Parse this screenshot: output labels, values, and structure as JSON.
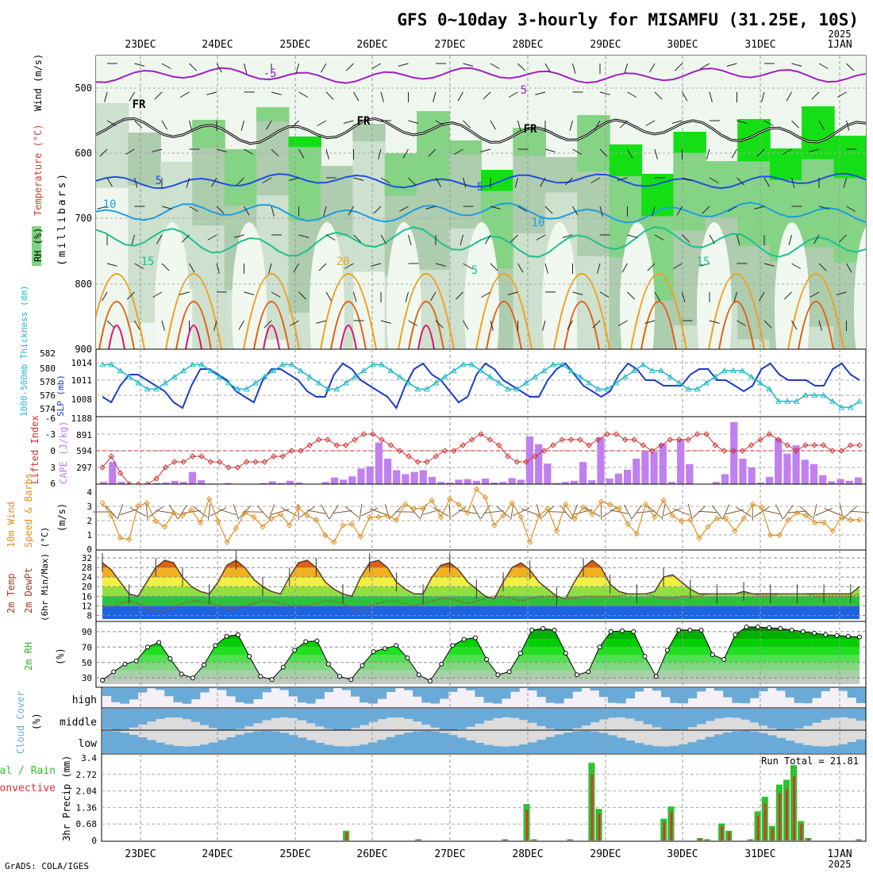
{
  "title": "GFS 0~10day 3-hourly for MISAMFU (31.25E, 10S)",
  "year_top": "2025",
  "footer": "GrADS: COLA/IGES",
  "date_labels": [
    "23DEC",
    "24DEC",
    "25DEC",
    "26DEC",
    "27DEC",
    "28DEC",
    "29DEC",
    "30DEC",
    "31DEC",
    "1JAN"
  ],
  "year_bottom": "2025",
  "colors": {
    "rh_greens": [
      "#e8f5e8",
      "#c8dcc8",
      "#a8c8a8",
      "#7ed47e",
      "#00e000",
      "#00b400"
    ],
    "temp5": "#a020c0",
    "temp0": "#000000",
    "temp_5": "#1e50e0",
    "temp_10": "#1e9ee0",
    "temp_15": "#1ec090",
    "temp_20": "#f0a020",
    "temp_25": "#e06010",
    "temp_30": "#e01070",
    "slp": "#1e3cc8",
    "thickness": "#20b8c8",
    "li": "#d03030",
    "cape": "#c080f0",
    "wind": "#e09020",
    "barb": "#7a5a3a",
    "cloud": "#6aaad8",
    "cloud_bg": "#dcdcdc",
    "precip_total": "#30c030",
    "precip_conv": "#e03030"
  },
  "panels": {
    "upper": {
      "ylabel_rh": "RH (%)",
      "ylabel_temp": "Temperature (°C)",
      "ylabel_wind": "Wind (m/s)",
      "ylabel_mb": "(millibars)",
      "y_ticks": [
        "500",
        "600",
        "700",
        "800",
        "900"
      ],
      "labels": [
        "-5",
        "5",
        "FR",
        "FR",
        "FR",
        "5",
        "5",
        "10",
        "10",
        "15",
        "15",
        "20",
        "5"
      ]
    },
    "slp": {
      "ylabel_thick": "1000-500mb Thickness (dm)",
      "ylabel_slp": "SLP (mb)",
      "left_ticks": [
        "582",
        "580",
        "578",
        "576",
        "574"
      ],
      "right_ticks": [
        "1014",
        "1011",
        "1008"
      ]
    },
    "cape": {
      "ylabel_li": "Lifted Index",
      "ylabel_cape": "CAPE (J/kg)",
      "left_ticks": [
        "-6",
        "-3",
        "0",
        "3",
        "6"
      ],
      "right_ticks": [
        "1188",
        "891",
        "594",
        "297"
      ]
    },
    "wind": {
      "ylabel_1": "10m Wind",
      "ylabel_2": "Speed & Barbs",
      "ylabel_3": "(m/s)",
      "ticks": [
        "4",
        "3",
        "2",
        "1",
        "0"
      ]
    },
    "temp": {
      "ylabel_1": "2m Temp",
      "ylabel_2": "2m DewPt",
      "ylabel_3": "(6hr Min/Max) (°C)",
      "ticks": [
        "32",
        "28",
        "24",
        "20",
        "16",
        "12",
        "8"
      ]
    },
    "rh": {
      "ylabel": "2m RH",
      "unit": "(%)",
      "ticks": [
        "90",
        "70",
        "50",
        "30"
      ]
    },
    "cloud": {
      "ylabel": "Cloud Cover",
      "unit": "(%)",
      "levels": [
        "high",
        "middle",
        "low"
      ]
    },
    "precip": {
      "ylabel_1": "Total / Rain",
      "ylabel_2": "Convective",
      "ylabel_3": "3hr Precip (mm)",
      "ticks": [
        "3.4",
        "2.72",
        "2.04",
        "1.36",
        "0.68",
        "0"
      ],
      "run_total": "Run Total = 21.81"
    }
  },
  "chart_data": [
    {
      "type": "line",
      "name": "SLP",
      "ylabel": "SLP (mb)",
      "ylim": [
        1005,
        1016
      ],
      "values": [
        1008,
        1007,
        1010,
        1012,
        1012,
        1011,
        1010,
        1009,
        1007,
        1006,
        1010,
        1013,
        1013,
        1012,
        1011,
        1009,
        1008,
        1007,
        1011,
        1013,
        1013,
        1012,
        1011,
        1009,
        1008,
        1008,
        1012,
        1014,
        1013,
        1011,
        1010,
        1009,
        1008,
        1006,
        1010,
        1013,
        1014,
        1012,
        1011,
        1009,
        1007,
        1008,
        1012,
        1014,
        1013,
        1011,
        1010,
        1009,
        1008,
        1008,
        1011,
        1013,
        1014,
        1012,
        1010,
        1009,
        1008,
        1009,
        1012,
        1014,
        1013,
        1011,
        1011,
        1010,
        1010,
        1010,
        1012,
        1013,
        1013,
        1011,
        1011,
        1010,
        1009,
        1010,
        1013,
        1014,
        1012,
        1011,
        1011,
        1011,
        1010,
        1010,
        1013,
        1014,
        1012,
        1011
      ]
    },
    {
      "type": "line",
      "name": "Thickness",
      "ylabel": "1000-500mb Thickness (dm)",
      "ylim": [
        573,
        583
      ],
      "values": [
        581,
        581,
        580,
        579,
        578,
        577,
        577,
        578,
        579,
        580,
        581,
        581,
        580,
        579,
        578,
        577,
        577,
        578,
        579,
        580,
        581,
        581,
        580,
        579,
        578,
        577,
        577,
        578,
        579,
        580,
        581,
        581,
        580,
        579,
        578,
        577,
        577,
        578,
        579,
        580,
        581,
        581,
        580,
        579,
        578,
        577,
        577,
        578,
        579,
        580,
        581,
        581,
        580,
        579,
        578,
        577,
        577,
        578,
        579,
        580,
        581,
        580,
        580,
        579,
        578,
        577,
        577,
        578,
        579,
        580,
        580,
        580,
        579,
        578,
        577,
        575,
        575,
        575,
        576,
        576,
        576,
        575,
        574,
        574,
        575
      ]
    },
    {
      "type": "bar",
      "name": "CAPE",
      "ylabel": "CAPE (J/kg)",
      "ylim": [
        0,
        1188
      ],
      "values": [
        40,
        400,
        40,
        0,
        0,
        0,
        20,
        30,
        60,
        40,
        220,
        70,
        10,
        0,
        20,
        0,
        0,
        0,
        20,
        50,
        20,
        60,
        30,
        0,
        0,
        40,
        120,
        80,
        140,
        280,
        320,
        750,
        460,
        250,
        180,
        220,
        250,
        130,
        40,
        30,
        80,
        90,
        60,
        100,
        30,
        40,
        110,
        80,
        860,
        720,
        370,
        20,
        40,
        60,
        400,
        70,
        840,
        100,
        190,
        260,
        460,
        600,
        580,
        730,
        40,
        810,
        360,
        0,
        0,
        40,
        180,
        1120,
        460,
        300,
        30,
        130,
        820,
        550,
        700,
        440,
        360,
        160,
        50,
        90,
        60,
        120
      ]
    },
    {
      "type": "line",
      "name": "Lifted Index",
      "ylabel": "Lifted Index",
      "ylim": [
        -6,
        6
      ],
      "values": [
        3,
        1,
        4,
        6,
        7,
        7,
        5,
        3,
        2,
        2,
        1,
        1,
        2,
        2,
        3,
        3,
        2,
        2,
        2,
        1,
        1,
        0,
        0,
        -1,
        -2,
        -2,
        -1,
        -1,
        -2,
        -3,
        -3,
        -2,
        -1,
        0,
        1,
        2,
        2,
        1,
        0,
        0,
        -1,
        -2,
        -3,
        -2,
        -1,
        1,
        2,
        2,
        1,
        0,
        -1,
        -2,
        -2,
        -2,
        -1,
        -2,
        -3,
        -3,
        -2,
        -2,
        -1,
        0,
        -1,
        -2,
        -2,
        -2,
        -3,
        -3,
        -1,
        0,
        0,
        0,
        -1,
        -2,
        -3,
        -2,
        -1,
        0,
        -1,
        -1,
        -1,
        0,
        0,
        -1,
        -1
      ]
    },
    {
      "type": "line",
      "name": "10m Wind Speed",
      "ylabel": "(m/s)",
      "ylim": [
        0,
        4.5
      ],
      "values": [
        3.3,
        2.4,
        0.8,
        0.7,
        3.1,
        3.3,
        2.0,
        1.6,
        2.6,
        2.4,
        2.8,
        1.9,
        3.6,
        2.0,
        0.5,
        1.5,
        2.6,
        2.3,
        1.6,
        2.2,
        2.5,
        1.7,
        3.0,
        2.4,
        2.1,
        1.0,
        0.5,
        1.7,
        1.8,
        0.9,
        2.3,
        2.3,
        2.4,
        2.1,
        3.2,
        2.9,
        2.9,
        3.5,
        2.3,
        3.6,
        3.2,
        2.6,
        4.3,
        3.7,
        1.7,
        2.4,
        3.3,
        2.3,
        0.5,
        2.4,
        2.9,
        1.3,
        3.2,
        2.2,
        3.0,
        2.5,
        3.4,
        3.2,
        2.9,
        1.8,
        1.1,
        3.2,
        2.3,
        3.5,
        2.4,
        2.0,
        2.1,
        0.8,
        1.6,
        2.2,
        2.2,
        1.3,
        2.2,
        3.2,
        3.0,
        1.0,
        1.0,
        2.1,
        2.6,
        2.4,
        1.9,
        1.9,
        1.3,
        2.3,
        2.1,
        2.1
      ]
    },
    {
      "type": "area",
      "name": "2m Temp",
      "ylabel": "(°C)",
      "ylim": [
        7,
        33
      ],
      "values": [
        30,
        27,
        22,
        17,
        16,
        22,
        28,
        31,
        30,
        24,
        20,
        18,
        17,
        22,
        29,
        31,
        28,
        23,
        20,
        18,
        17,
        24,
        30,
        31,
        28,
        22,
        19,
        17,
        16,
        24,
        30,
        31,
        28,
        22,
        19,
        17,
        17,
        24,
        29,
        30,
        27,
        22,
        19,
        16,
        15,
        22,
        28,
        30,
        27,
        22,
        19,
        16,
        15,
        22,
        28,
        31,
        28,
        21,
        18,
        17,
        17,
        17,
        18,
        24,
        25,
        22,
        19,
        17,
        17,
        17,
        17,
        17,
        18,
        17,
        17,
        17,
        17,
        17,
        17,
        17,
        17,
        17,
        17,
        17,
        17,
        20
      ]
    },
    {
      "type": "line",
      "name": "2m DewPt",
      "ylabel": "(°C)",
      "ylim": [
        7,
        33
      ],
      "values": [
        12,
        11,
        13,
        14,
        13,
        11,
        10,
        10,
        11,
        13,
        14,
        14,
        13,
        12,
        11,
        11,
        12,
        13,
        14,
        14,
        13,
        12,
        12,
        12,
        13,
        14,
        14,
        13,
        11,
        10,
        12,
        13,
        14,
        14,
        13,
        12,
        13,
        14,
        15,
        15,
        14,
        13,
        14,
        15,
        16,
        16,
        15,
        14,
        15,
        16,
        16,
        16,
        15,
        15,
        16,
        16,
        16,
        16,
        16,
        17,
        17,
        17,
        16,
        15,
        15,
        16,
        16,
        16,
        17,
        17,
        17,
        17,
        17,
        17,
        16,
        16,
        17,
        17,
        17,
        17,
        16,
        16,
        16,
        16,
        16,
        17
      ]
    },
    {
      "type": "area",
      "name": "2m RH",
      "ylabel": "(%)",
      "ylim": [
        20,
        100
      ],
      "values": [
        27,
        38,
        48,
        52,
        70,
        76,
        55,
        35,
        30,
        47,
        72,
        84,
        86,
        58,
        32,
        28,
        44,
        66,
        77,
        78,
        48,
        32,
        28,
        46,
        64,
        68,
        72,
        56,
        34,
        26,
        48,
        72,
        80,
        82,
        54,
        34,
        38,
        62,
        92,
        94,
        92,
        62,
        34,
        38,
        70,
        90,
        91,
        90,
        58,
        32,
        66,
        92,
        92,
        92,
        60,
        54,
        86,
        96,
        96,
        95,
        94,
        92,
        90,
        88,
        86,
        85,
        84,
        83
      ]
    },
    {
      "type": "bar",
      "name": "3hr Precip Total",
      "ylabel": "3hr Precip (mm)",
      "ylim": [
        0,
        3.4
      ],
      "values": [
        0,
        0,
        0,
        0,
        0,
        0,
        0,
        0,
        0,
        0,
        0,
        0,
        0,
        0,
        0,
        0,
        0,
        0,
        0,
        0,
        0,
        0,
        0,
        0,
        0,
        0,
        0,
        0,
        0,
        0,
        0,
        0,
        0,
        0.4,
        0,
        0,
        0,
        0,
        0,
        0,
        0,
        0,
        0,
        0.05,
        0,
        0,
        0,
        0,
        0,
        0,
        0,
        0,
        0,
        0,
        0,
        0.05,
        0,
        0,
        1.5,
        0.05,
        0,
        0,
        0,
        0,
        0.05,
        0,
        0,
        3.2,
        1.3,
        0,
        0,
        0,
        0,
        0,
        0,
        0,
        0,
        0.9,
        1.4,
        0,
        0,
        0,
        0.1,
        0.05,
        0,
        0.7,
        0.4,
        0,
        0,
        0.05,
        1.2,
        1.8,
        0.6,
        2.3,
        2.5,
        3.1,
        0.8,
        0.1,
        0,
        0,
        0,
        0,
        0,
        0,
        0.05
      ]
    }
  ]
}
